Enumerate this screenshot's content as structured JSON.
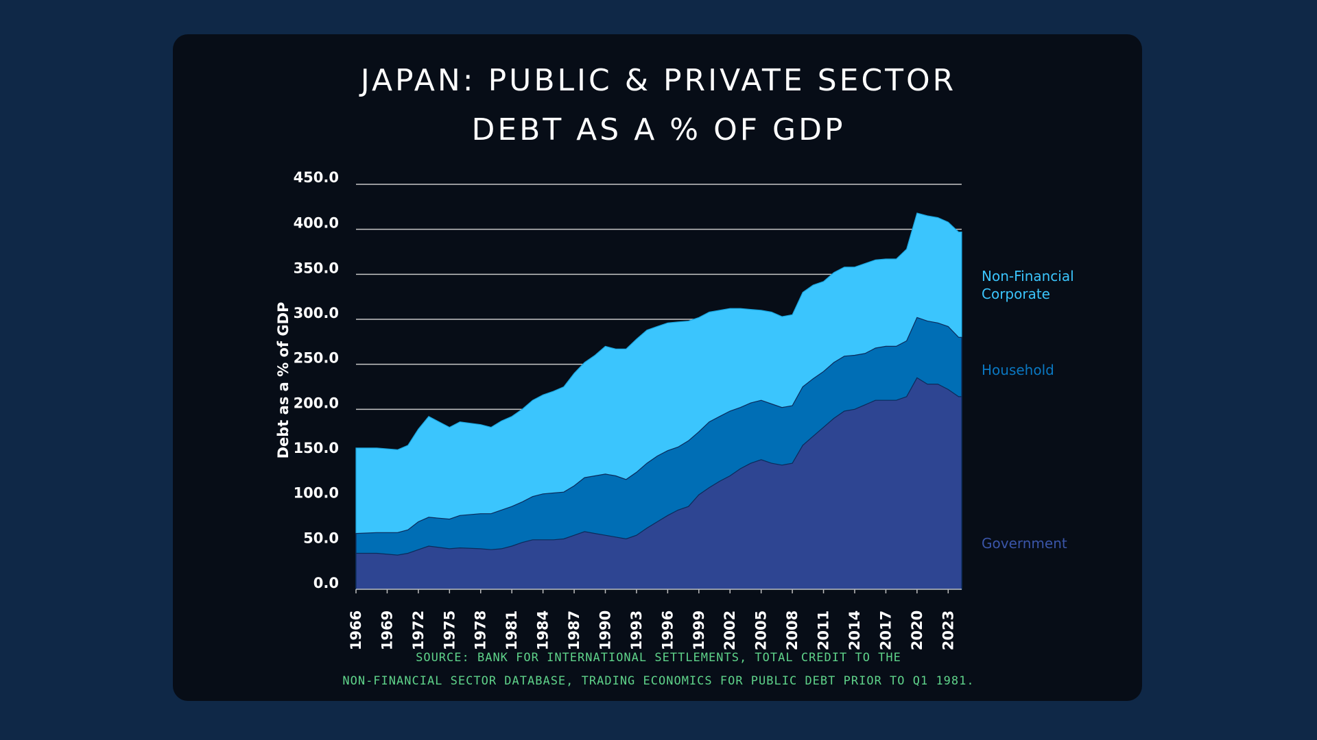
{
  "title": {
    "line1": "JAPAN: PUBLIC & PRIVATE SECTOR",
    "line2": "DEBT AS A % OF GDP"
  },
  "source": {
    "line1": "SOURCE: BANK FOR INTERNATIONAL SETTLEMENTS, TOTAL CREDIT TO THE",
    "line2": "NON-FINANCIAL SECTOR DATABASE, TRADING ECONOMICS FOR PUBLIC DEBT PRIOR TO Q1 1981."
  },
  "legend": {
    "nfc_line1": "Non-Financial",
    "nfc_line2": "Corporate",
    "household": "Household",
    "government": "Government"
  },
  "colors": {
    "page_background": "#0f2847",
    "panel_background": "#070d17",
    "government": "#2e4592",
    "household": "#006eb5",
    "non_financial_corporate": "#3bc5fd",
    "gridline": "#c8c8c8",
    "source_text": "#5fd38a",
    "government_label": "#3a55a8",
    "household_label": "#0a78c2",
    "nfc_label": "#3bc5fd"
  },
  "chart_data": {
    "type": "area",
    "stacked": true,
    "title": "JAPAN: PUBLIC & PRIVATE SECTOR DEBT AS A % OF GDP",
    "xlabel": "",
    "ylabel": "Debt as a % of GDP",
    "ylim": [
      0,
      450
    ],
    "yticks": [
      "0.0",
      "50.0",
      "100.0",
      "150.0",
      "200.0",
      "250.0",
      "300.0",
      "350.0",
      "400.0",
      "450.0"
    ],
    "xticks": [
      "1966",
      "1969",
      "1972",
      "1975",
      "1978",
      "1981",
      "1984",
      "1987",
      "1990",
      "1993",
      "1996",
      "1999",
      "2002",
      "2005",
      "2008",
      "2011",
      "2014",
      "2017",
      "2020",
      "2023"
    ],
    "grid": true,
    "legend_position": "right",
    "x": [
      1966,
      1968,
      1970,
      1971,
      1972,
      1973,
      1975,
      1976,
      1978,
      1979,
      1980,
      1981,
      1982,
      1983,
      1984,
      1985,
      1986,
      1987,
      1988,
      1989,
      1990,
      1991,
      1992,
      1993,
      1994,
      1995,
      1996,
      1997,
      1998,
      1999,
      2000,
      2001,
      2002,
      2003,
      2004,
      2005,
      2006,
      2007,
      2008,
      2009,
      2010,
      2011,
      2012,
      2013,
      2014,
      2015,
      2016,
      2017,
      2018,
      2019,
      2020,
      2021,
      2022,
      2023,
      2024
    ],
    "series": [
      {
        "name": "Government",
        "values": [
          40,
          40,
          38,
          40,
          44,
          48,
          45,
          46,
          45,
          44,
          45,
          48,
          52,
          55,
          55,
          55,
          56,
          60,
          64,
          62,
          60,
          58,
          56,
          60,
          68,
          75,
          82,
          88,
          92,
          105,
          113,
          120,
          126,
          134,
          140,
          144,
          140,
          138,
          140,
          160,
          170,
          180,
          190,
          198,
          200,
          205,
          210,
          210,
          210,
          214,
          235,
          228,
          228,
          222,
          214
        ]
      },
      {
        "name": "Household",
        "values": [
          22,
          23,
          25,
          26,
          31,
          32,
          33,
          36,
          39,
          40,
          43,
          44,
          45,
          48,
          51,
          52,
          52,
          55,
          60,
          64,
          68,
          68,
          66,
          70,
          72,
          73,
          72,
          70,
          73,
          70,
          73,
          72,
          72,
          68,
          67,
          66,
          66,
          64,
          64,
          65,
          64,
          62,
          62,
          61,
          60,
          57,
          58,
          60,
          60,
          62,
          67,
          70,
          68,
          70,
          66
        ]
      },
      {
        "name": "Non-Financial Corporate",
        "values": [
          95,
          94,
          92,
          94,
          103,
          112,
          102,
          104,
          99,
          96,
          99,
          100,
          103,
          107,
          110,
          113,
          117,
          125,
          128,
          134,
          142,
          141,
          145,
          148,
          148,
          144,
          142,
          139,
          133,
          127,
          122,
          118,
          114,
          110,
          104,
          100,
          102,
          101,
          101,
          105,
          104,
          100,
          100,
          99,
          98,
          100,
          98,
          97,
          97,
          102,
          116,
          117,
          117,
          116,
          117
        ]
      }
    ]
  }
}
